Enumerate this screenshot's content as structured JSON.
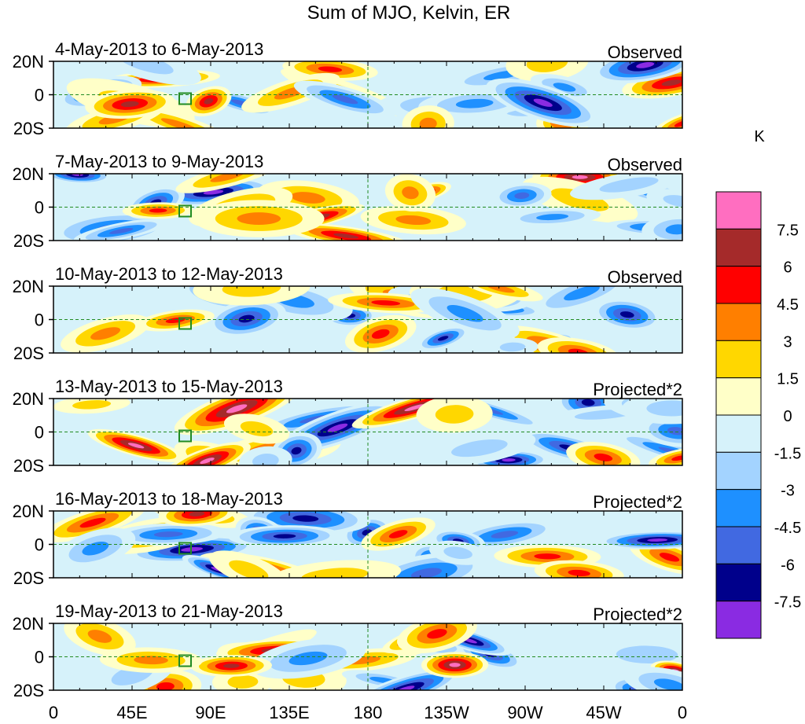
{
  "chart_data": {
    "type": "heatmap",
    "title": "Sum of MJO, Kelvin, ER",
    "units": "K",
    "lat_ticks": [
      "20N",
      "0",
      "20S"
    ],
    "lon_ticks": [
      "0",
      "45E",
      "90E",
      "135E",
      "180",
      "135W",
      "90W",
      "45W",
      "0"
    ],
    "lat_range": [
      -20,
      20
    ],
    "lon_range": [
      0,
      360
    ],
    "panels": [
      {
        "label": "4-May-2013 to 6-May-2013",
        "tag": "Observed"
      },
      {
        "label": "7-May-2013 to 9-May-2013",
        "tag": "Observed"
      },
      {
        "label": "10-May-2013 to 12-May-2013",
        "tag": "Observed"
      },
      {
        "label": "13-May-2013 to 15-May-2013",
        "tag": "Projected*2"
      },
      {
        "label": "16-May-2013 to 18-May-2013",
        "tag": "Projected*2"
      },
      {
        "label": "19-May-2013 to 21-May-2013",
        "tag": "Projected*2"
      }
    ],
    "colorbar": {
      "labels": [
        "7.5",
        "6",
        "4.5",
        "3",
        "1.5",
        "0",
        "-1.5",
        "-3",
        "-4.5",
        "-6",
        "-7.5"
      ],
      "colors": [
        "#ff6ec0",
        "#a52a2a",
        "#ff0000",
        "#ff7f00",
        "#ffd700",
        "#ffffc8",
        "#d6f2fa",
        "#a3d3ff",
        "#1e90ff",
        "#4169e1",
        "#00008b",
        "#8a2be2"
      ]
    }
  }
}
